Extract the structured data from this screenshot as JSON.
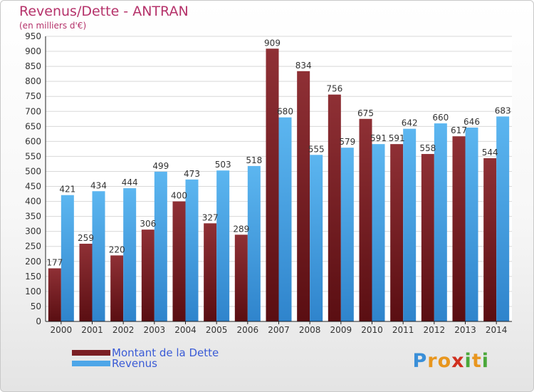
{
  "chart_data": {
    "type": "bar",
    "title": "Revenus/Dette - ANTRAN",
    "subtitle": "(en milliers d'€)",
    "xlabel": "",
    "ylabel": "",
    "ylim": [
      0,
      950
    ],
    "ytick_step": 50,
    "grid": true,
    "legend_position": "bottom-left",
    "categories": [
      "2000",
      "2001",
      "2002",
      "2003",
      "2004",
      "2005",
      "2006",
      "2007",
      "2008",
      "2009",
      "2010",
      "2011",
      "2012",
      "2013",
      "2014"
    ],
    "series": [
      {
        "name": "Montant de la Dette",
        "color": "#7a1f24",
        "values": [
          177,
          259,
          220,
          306,
          400,
          327,
          289,
          909,
          834,
          756,
          675,
          591,
          558,
          617,
          544
        ]
      },
      {
        "name": "Revenus",
        "color": "#4da6e8",
        "values": [
          421,
          434,
          444,
          499,
          473,
          503,
          518,
          680,
          555,
          579,
          591,
          642,
          660,
          646,
          683
        ]
      }
    ]
  },
  "watermark": {
    "text": "Proxiti",
    "letters": [
      {
        "ch": "P",
        "color": "#3a8fd8"
      },
      {
        "ch": "r",
        "color": "#e8961e"
      },
      {
        "ch": "o",
        "color": "#e8961e"
      },
      {
        "ch": "x",
        "color": "#d03020"
      },
      {
        "ch": "i",
        "color": "#4aa83a"
      },
      {
        "ch": "t",
        "color": "#e8961e"
      },
      {
        "ch": "i",
        "color": "#4aa83a"
      }
    ]
  }
}
